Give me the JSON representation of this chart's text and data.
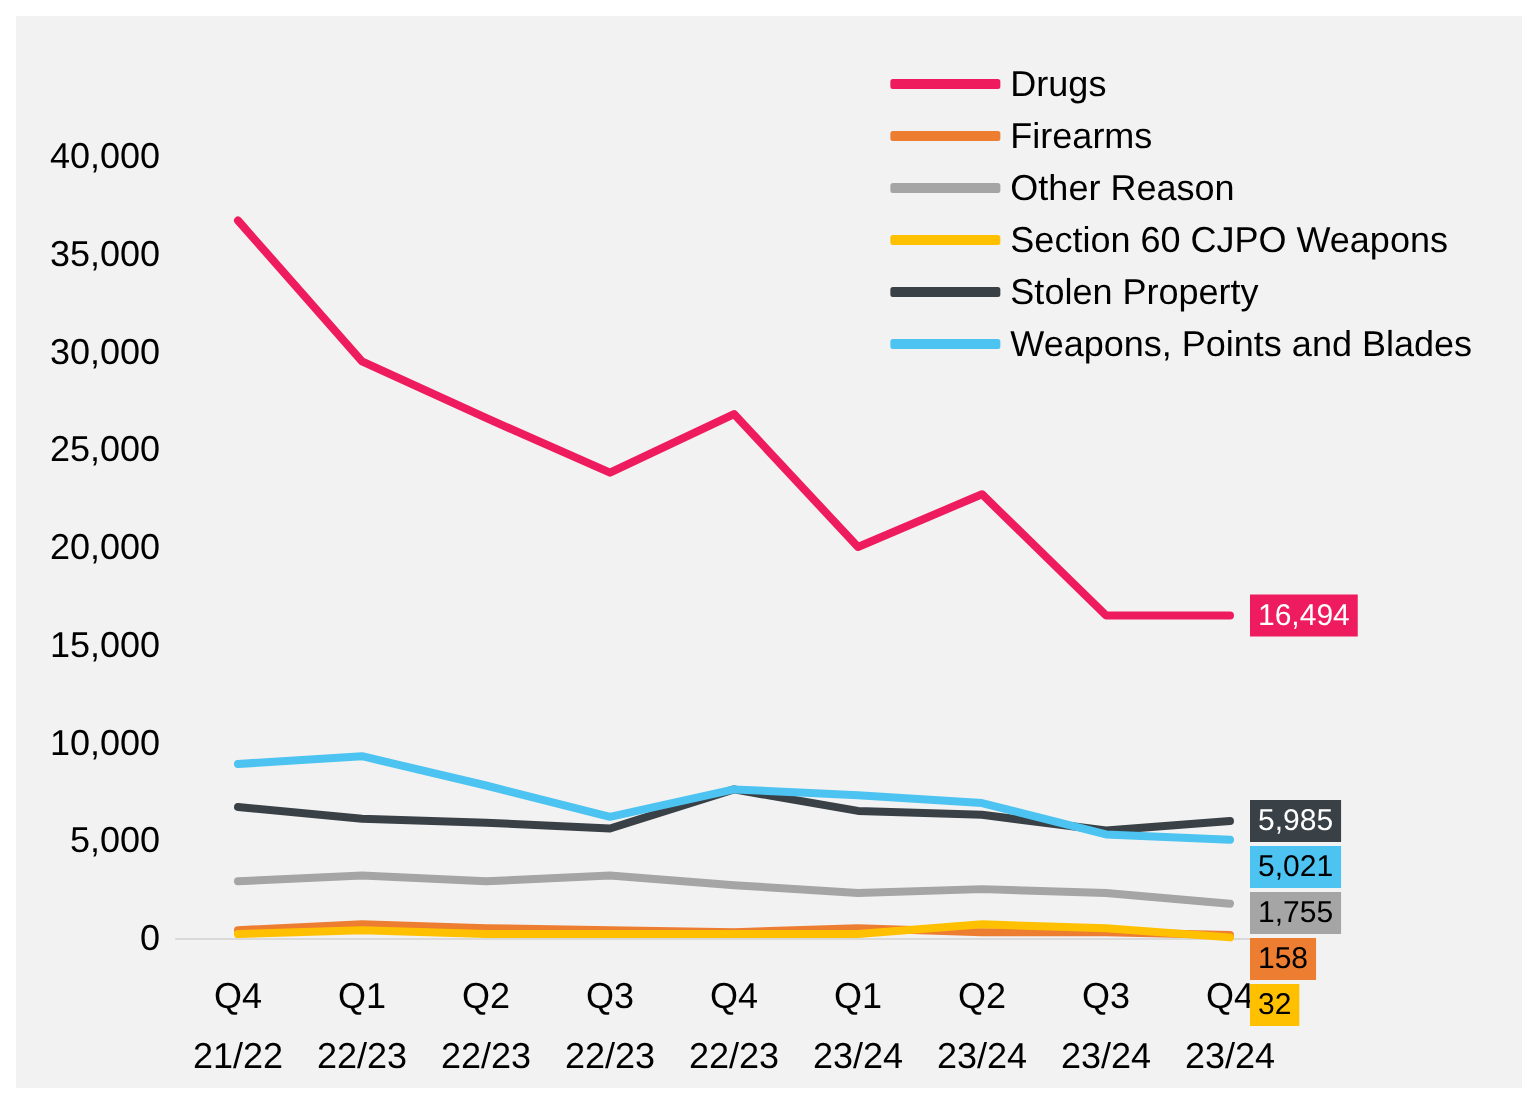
{
  "chart_data": {
    "type": "line",
    "categories": [
      "Q4\n21/22",
      "Q1\n22/23",
      "Q2\n22/23",
      "Q3\n22/23",
      "Q4\n22/23",
      "Q1\n23/24",
      "Q2\n23/24",
      "Q3\n23/24",
      "Q4\n23/24"
    ],
    "series": [
      {
        "name": "Drugs",
        "color": "#ee1c5e",
        "values": [
          36700,
          29500,
          26600,
          23800,
          26800,
          20000,
          22700,
          16500,
          16494
        ],
        "value_labels": [
          null,
          null,
          null,
          null,
          null,
          null,
          null,
          null,
          "16,494"
        ]
      },
      {
        "name": "Firearms",
        "color": "#ed7d31",
        "values": [
          400,
          700,
          500,
          400,
          300,
          500,
          300,
          300,
          158
        ],
        "value_labels": [
          null,
          null,
          null,
          null,
          null,
          null,
          null,
          null,
          "158"
        ]
      },
      {
        "name": "Other Reason",
        "color": "#a5a5a5",
        "values": [
          2900,
          3200,
          2900,
          3200,
          2700,
          2300,
          2500,
          2300,
          1755
        ],
        "value_labels": [
          null,
          null,
          null,
          null,
          null,
          null,
          null,
          null,
          "1,755"
        ]
      },
      {
        "name": "Section 60 CJPO Weapons",
        "color": "#ffc000",
        "values": [
          200,
          400,
          200,
          200,
          200,
          200,
          700,
          500,
          32
        ],
        "value_labels": [
          null,
          null,
          null,
          null,
          null,
          null,
          null,
          null,
          "32"
        ]
      },
      {
        "name": "Stolen Property",
        "color": "#3a4146",
        "values": [
          6700,
          6100,
          5900,
          5600,
          7600,
          6500,
          6300,
          5500,
          5985
        ],
        "value_labels": [
          null,
          null,
          null,
          null,
          null,
          null,
          null,
          null,
          "5,985"
        ]
      },
      {
        "name": "Weapons, Points and Blades",
        "color": "#4cc3f0",
        "values": [
          8900,
          9300,
          7800,
          6200,
          7600,
          7300,
          6900,
          5300,
          5021
        ],
        "value_labels": [
          null,
          null,
          null,
          null,
          null,
          null,
          null,
          null,
          "5,021"
        ]
      }
    ],
    "ylim": [
      0,
      40000
    ],
    "yticks": [
      {
        "value": 0,
        "label": "0"
      },
      {
        "value": 5000,
        "label": "5,000"
      },
      {
        "value": 10000,
        "label": "10,000"
      },
      {
        "value": 15000,
        "label": "15,000"
      },
      {
        "value": 20000,
        "label": "20,000"
      },
      {
        "value": 25000,
        "label": "25,000"
      },
      {
        "value": 30000,
        "label": "30,000"
      },
      {
        "value": 35000,
        "label": "35,000"
      },
      {
        "value": 40000,
        "label": "40,000"
      }
    ],
    "grid": false,
    "legend": "top right"
  }
}
